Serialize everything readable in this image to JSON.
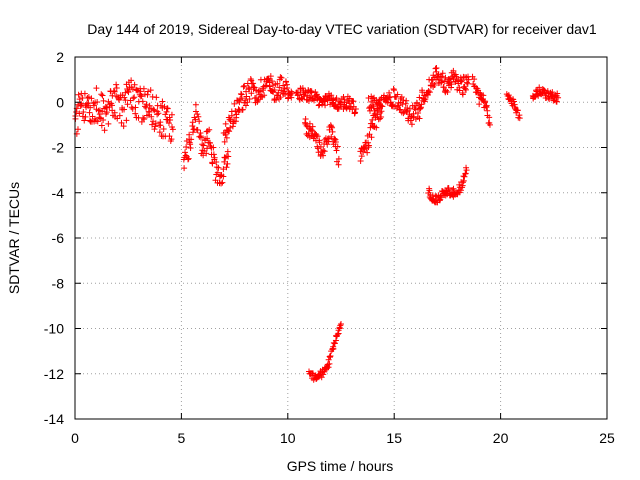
{
  "chart_data": {
    "type": "scatter",
    "title": "Day 144 of 2019, Sidereal Day-to-day VTEC variation (SDTVAR) for receiver dav1",
    "xlabel": "GPS time / hours",
    "ylabel": "SDTVAR / TECUs",
    "xlim": [
      0,
      25
    ],
    "ylim": [
      -14,
      2
    ],
    "xticks": [
      0,
      5,
      10,
      15,
      20,
      25
    ],
    "yticks": [
      -14,
      -12,
      -10,
      -8,
      -6,
      -4,
      -2,
      0,
      2
    ],
    "grid": true,
    "marker": "+",
    "color": "#ff0000",
    "legend": "none",
    "series": [
      {
        "name": "SDTVAR",
        "segments": [
          {
            "x": [
              0.0,
              0.3,
              0.6,
              1.0,
              1.4,
              1.8,
              2.2,
              2.6,
              3.0,
              3.4,
              3.8,
              4.2,
              4.6
            ],
            "y": [
              -0.8,
              -0.2,
              -0.5,
              0.0,
              -0.6,
              0.2,
              -0.4,
              0.3,
              -0.2,
              0.1,
              -0.5,
              -0.8,
              -1.2
            ],
            "spread": 0.8
          },
          {
            "x": [
              5.1,
              5.4,
              5.7,
              6.0,
              6.3,
              6.6,
              6.9,
              7.2
            ],
            "y": [
              -2.6,
              -1.8,
              -0.6,
              -2.2,
              -1.4,
              -3.0,
              -3.2,
              -2.4
            ],
            "spread": 0.5
          },
          {
            "x": [
              7.0,
              7.4,
              7.8,
              8.2,
              8.6,
              9.0,
              9.4,
              9.8,
              10.2
            ],
            "y": [
              -1.5,
              -0.6,
              0.0,
              0.6,
              0.4,
              0.9,
              0.5,
              0.8,
              0.4
            ],
            "spread": 0.5
          },
          {
            "x": [
              10.4,
              10.8,
              11.2,
              11.6,
              12.0,
              12.4,
              12.8,
              13.2
            ],
            "y": [
              0.3,
              0.4,
              0.2,
              0.0,
              0.1,
              -0.1,
              0.0,
              -0.3
            ],
            "spread": 0.3
          },
          {
            "x": [
              10.8,
              11.2,
              11.6,
              12.0,
              12.4
            ],
            "y": [
              -1.0,
              -1.5,
              -2.2,
              -1.2,
              -2.5
            ],
            "spread": 0.4
          },
          {
            "x": [
              13.4,
              13.7,
              14.0,
              14.4
            ],
            "y": [
              -2.4,
              -2.0,
              -1.0,
              -0.4
            ],
            "spread": 0.4
          },
          {
            "x": [
              11.0,
              11.3,
              11.6,
              11.9,
              12.1,
              12.3,
              12.5
            ],
            "y": [
              -12.0,
              -12.2,
              -12.0,
              -11.6,
              -10.9,
              -10.3,
              -9.8
            ],
            "spread": 0.15
          },
          {
            "x": [
              13.8,
              14.2,
              14.6,
              15.0,
              15.4,
              15.8,
              16.2
            ],
            "y": [
              0.0,
              -0.2,
              0.1,
              0.2,
              -0.1,
              -0.6,
              -0.3
            ],
            "spread": 0.4
          },
          {
            "x": [
              16.2,
              16.6,
              17.0,
              17.4,
              17.8,
              18.2,
              18.5
            ],
            "y": [
              0.0,
              0.6,
              1.3,
              0.8,
              1.0,
              0.7,
              1.0
            ],
            "spread": 0.4
          },
          {
            "x": [
              16.6,
              16.9,
              17.2,
              17.5,
              17.8,
              18.1,
              18.4
            ],
            "y": [
              -3.9,
              -4.4,
              -4.1,
              -3.9,
              -4.0,
              -3.8,
              -3.0
            ],
            "spread": 0.2
          },
          {
            "x": [
              18.7,
              19.0,
              19.3,
              19.5
            ],
            "y": [
              1.0,
              0.2,
              -0.1,
              -1.0
            ],
            "spread": 0.3
          },
          {
            "x": [
              20.3,
              20.6,
              20.9
            ],
            "y": [
              0.2,
              0.0,
              -0.7
            ],
            "spread": 0.2
          },
          {
            "x": [
              21.5,
              21.9,
              22.3,
              22.7
            ],
            "y": [
              0.3,
              0.5,
              0.3,
              0.2
            ],
            "spread": 0.2
          }
        ]
      }
    ]
  }
}
